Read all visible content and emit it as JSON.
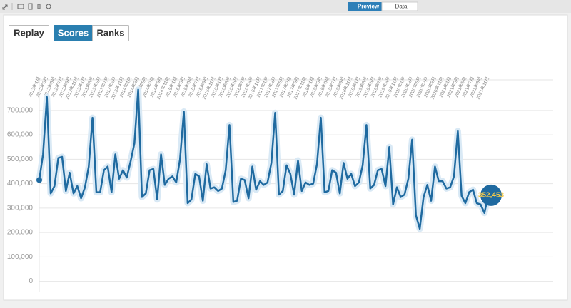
{
  "ui": {
    "tabs": [
      "Preview",
      "Data"
    ],
    "buttons": [
      "Replay",
      "Scores",
      "Ranks"
    ]
  },
  "chart_data": {
    "type": "line",
    "color": "#1f6aa0",
    "grid": true,
    "categories": [
      "2012年1月",
      null,
      "2012年3月",
      null,
      "2012年5月",
      null,
      "2012年7月",
      null,
      "2012年9月",
      null,
      "2012年11月",
      null,
      "2013年1月",
      null,
      "2013年3月",
      null,
      "2013年5月",
      null,
      "2013年7月",
      null,
      "2013年9月",
      null,
      "2013年11月",
      null,
      "2014年1月",
      null,
      "2014年3月",
      null,
      "2014年5月",
      null,
      "2014年7月",
      null,
      "2014年9月",
      null,
      "2014年11月",
      null,
      "2015年1月",
      null,
      "2015年3月",
      null,
      "2015年5月",
      null,
      "2015年7月",
      null,
      "2015年9月",
      null,
      "2015年11月",
      null,
      "2016年1月",
      null,
      "2016年3月",
      null,
      "2016年5月",
      null,
      "2016年7月",
      null,
      "2016年9月",
      null,
      "2016年11月",
      null,
      "2017年1月",
      null,
      "2017年3月",
      null,
      "2017年5月",
      null,
      "2017年7月",
      null,
      "2017年9月",
      null,
      "2017年11月",
      null,
      "2018年1月",
      null,
      "2018年3月",
      null,
      "2018年5月",
      null,
      "2018年7月",
      null,
      "2018年9月",
      null,
      "2018年11月",
      null,
      "2019年1月",
      null,
      "2019年3月",
      null,
      "2019年5月",
      null,
      "2019年7月",
      null,
      "2019年9月",
      null,
      "2019年11月",
      null,
      "2020年1月",
      null,
      "2020年3月",
      null,
      "2020年5月",
      null,
      "2020年7月",
      null,
      "2020年9月",
      null,
      "2020年11月",
      null,
      "2021年1月",
      null,
      "2021年3月",
      null,
      "2021年5月",
      null,
      "2021年7月",
      null,
      "2021年9月",
      null,
      "2021年11月"
    ],
    "values": [
      415000,
      520000,
      755000,
      360000,
      390000,
      505000,
      510000,
      370000,
      445000,
      360000,
      390000,
      340000,
      385000,
      470000,
      670000,
      365000,
      365000,
      455000,
      470000,
      365000,
      520000,
      420000,
      455000,
      425000,
      490000,
      565000,
      785000,
      345000,
      360000,
      455000,
      460000,
      335000,
      520000,
      395000,
      420000,
      430000,
      405000,
      500000,
      695000,
      320000,
      335000,
      440000,
      430000,
      330000,
      480000,
      380000,
      385000,
      370000,
      380000,
      455000,
      640000,
      325000,
      330000,
      420000,
      415000,
      340000,
      470000,
      375000,
      410000,
      395000,
      405000,
      485000,
      690000,
      355000,
      370000,
      475000,
      440000,
      355000,
      495000,
      370000,
      405000,
      395000,
      400000,
      480000,
      670000,
      365000,
      370000,
      455000,
      445000,
      360000,
      485000,
      420000,
      440000,
      390000,
      405000,
      475000,
      640000,
      380000,
      395000,
      455000,
      460000,
      390000,
      550000,
      315000,
      385000,
      345000,
      355000,
      420000,
      580000,
      270000,
      215000,
      345000,
      395000,
      330000,
      470000,
      410000,
      410000,
      380000,
      385000,
      430000,
      615000,
      350000,
      320000,
      365000,
      375000,
      320000,
      315000,
      280000,
      352453
    ],
    "value_labels": [
      null,
      null,
      null,
      null,
      null,
      null,
      null,
      null,
      null,
      null,
      null,
      null,
      null,
      null,
      null,
      null,
      null,
      null,
      null,
      null,
      null,
      null,
      null,
      null,
      null,
      null,
      null,
      null,
      null,
      null,
      null,
      null,
      null,
      null,
      null,
      null,
      null,
      null,
      null,
      null,
      null,
      null,
      null,
      null,
      null,
      null,
      null,
      null,
      null,
      null,
      null,
      null,
      null,
      null,
      null,
      null,
      null,
      null,
      null,
      null,
      null,
      null,
      null,
      null,
      null,
      null,
      null,
      null,
      null,
      null,
      null,
      null,
      null,
      null,
      null,
      null,
      null,
      null,
      null,
      null,
      null,
      null,
      null,
      null,
      null,
      null,
      null,
      null,
      null,
      null,
      null,
      null,
      null,
      null,
      null,
      null,
      null,
      null,
      null,
      null,
      null,
      null,
      null,
      null,
      null,
      null,
      null,
      null,
      null,
      null,
      null,
      null,
      null,
      null,
      null,
      null,
      null,
      null,
      "352,453"
    ],
    "ylim": [
      -45000,
      825000
    ],
    "yticks": [
      0,
      {
        "value": 100000,
        "label": "100,000"
      },
      {
        "value": 200000,
        "label": "200,000"
      },
      {
        "value": 300000,
        "label": "300,000"
      },
      {
        "value": 400000,
        "label": "400,000"
      },
      {
        "value": 500000,
        "label": "500,000"
      },
      {
        "value": 600000,
        "label": "600,000"
      },
      {
        "value": 700000,
        "label": "700,000"
      }
    ]
  }
}
